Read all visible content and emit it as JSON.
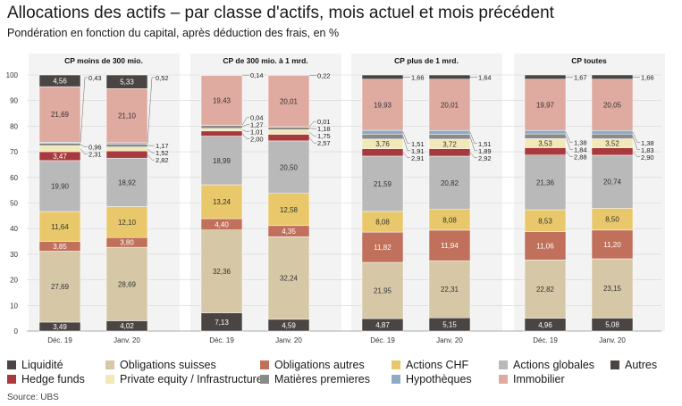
{
  "title": "Allocations des actifs – par classe d'actifs, mois actuel et mois précédent",
  "subtitle": "Pondération en fonction du capital, après déduction des frais, en %",
  "source": "Source: UBS",
  "colors": {
    "Liquidité": "#4a4542",
    "Obligations suisses": "#d6c7a6",
    "Obligations autres": "#c0705b",
    "Actions CHF": "#e8c86a",
    "Actions globales": "#b9b9b9",
    "Autres": "#4a4542",
    "Hedge funds": "#a83a3e",
    "Private equity/Infrastructure": "#f2e8b8",
    "Matières premieres": "#8a8a8a",
    "Hypothèques": "#8faac6",
    "Immobilier": "#dfaaa0"
  },
  "legend": [
    {
      "label": "Liquidité",
      "key": "Liquidité"
    },
    {
      "label": "Obligations suisses",
      "key": "Obligations suisses"
    },
    {
      "label": "Obligations autres",
      "key": "Obligations autres"
    },
    {
      "label": "Actions CHF",
      "key": "Actions CHF"
    },
    {
      "label": "Actions globales",
      "key": "Actions globales"
    },
    {
      "label": "Autres",
      "key": "Autres"
    },
    {
      "label": "Hedge funds",
      "key": "Hedge funds"
    },
    {
      "label": "Private equity / Infrastructure",
      "key": "Private equity/Infrastructure"
    },
    {
      "label": "Matières premieres",
      "key": "Matières premieres"
    },
    {
      "label": "Hypothèques",
      "key": "Hypothèques"
    },
    {
      "label": "Immobilier",
      "key": "Immobilier"
    }
  ],
  "chart_data": {
    "type": "bar",
    "stacked": true,
    "ylim": [
      0,
      100
    ],
    "yticks": [
      0,
      10,
      20,
      30,
      40,
      50,
      60,
      70,
      80,
      90,
      100
    ],
    "grid": true,
    "legend_position": "bottom",
    "series_order": [
      "Liquidité",
      "Obligations suisses",
      "Obligations autres",
      "Actions CHF",
      "Actions globales",
      "Hedge funds",
      "Private equity/Infrastructure",
      "Matières premieres",
      "Hypothèques",
      "Immobilier",
      "Autres"
    ],
    "groups": [
      {
        "label": "CP moins de 300 mio.",
        "bars": [
          {
            "label": "Déc. 19",
            "values": {
              "Liquidité": 3.49,
              "Obligations suisses": 27.69,
              "Obligations autres": 3.85,
              "Actions CHF": 11.64,
              "Actions globales": 19.9,
              "Hedge funds": 3.47,
              "Private equity/Infrastructure": 2.31,
              "Matières premieres": 0.96,
              "Hypothèques": 0.43,
              "Immobilier": 21.69,
              "Autres": 4.56
            }
          },
          {
            "label": "Janv. 20",
            "values": {
              "Liquidité": 4.02,
              "Obligations suisses": 28.69,
              "Obligations autres": 3.8,
              "Actions CHF": 12.1,
              "Actions globales": 18.92,
              "Hedge funds": 2.82,
              "Private equity/Infrastructure": 1.52,
              "Matières premieres": 1.17,
              "Hypothèques": 0.52,
              "Immobilier": 21.1,
              "Autres": 5.33
            }
          }
        ]
      },
      {
        "label": "CP de 300 mio. à 1 mrd.",
        "bars": [
          {
            "label": "Déc. 19",
            "values": {
              "Liquidité": 7.13,
              "Obligations suisses": 32.36,
              "Obligations autres": 4.4,
              "Actions CHF": 13.24,
              "Actions globales": 18.99,
              "Hedge funds": 2.0,
              "Private equity/Infrastructure": 1.01,
              "Matières premieres": 1.27,
              "Hypothèques": 0.04,
              "Immobilier": 19.43,
              "Autres": 0.14
            }
          },
          {
            "label": "Janv. 20",
            "values": {
              "Liquidité": 4.59,
              "Obligations suisses": 32.24,
              "Obligations autres": 4.35,
              "Actions CHF": 12.58,
              "Actions globales": 20.5,
              "Hedge funds": 2.57,
              "Private equity/Infrastructure": 1.75,
              "Matières premieres": 1.18,
              "Hypothèques": 0.01,
              "Immobilier": 20.01,
              "Autres": 0.22
            }
          }
        ]
      },
      {
        "label": "CP plus de 1 mrd.",
        "bars": [
          {
            "label": "Déc. 19",
            "values": {
              "Liquidité": 4.87,
              "Obligations suisses": 21.95,
              "Obligations autres": 11.82,
              "Actions CHF": 8.08,
              "Actions globales": 21.59,
              "Hedge funds": 2.91,
              "Private equity/Infrastructure": 3.76,
              "Matières premieres": 1.91,
              "Hypothèques": 1.51,
              "Immobilier": 19.93,
              "Autres": 1.66
            }
          },
          {
            "label": "Janv. 20",
            "values": {
              "Liquidité": 5.15,
              "Obligations suisses": 22.31,
              "Obligations autres": 11.94,
              "Actions CHF": 8.08,
              "Actions globales": 20.82,
              "Hedge funds": 2.92,
              "Private equity/Infrastructure": 3.72,
              "Matières premieres": 1.89,
              "Hypothèques": 1.51,
              "Immobilier": 20.01,
              "Autres": 1.64
            }
          }
        ]
      },
      {
        "label": "CP toutes",
        "bars": [
          {
            "label": "Déc. 19",
            "values": {
              "Liquidité": 4.96,
              "Obligations suisses": 22.82,
              "Obligations autres": 11.06,
              "Actions CHF": 8.53,
              "Actions globales": 21.36,
              "Hedge funds": 2.88,
              "Private equity/Infrastructure": 3.53,
              "Matières premieres": 1.84,
              "Hypothèques": 1.38,
              "Immobilier": 19.97,
              "Autres": 1.67
            }
          },
          {
            "label": "Janv. 20",
            "values": {
              "Liquidité": 5.08,
              "Obligations suisses": 23.15,
              "Obligations autres": 11.2,
              "Actions CHF": 8.5,
              "Actions globales": 20.74,
              "Hedge funds": 2.9,
              "Private equity/Infrastructure": 3.52,
              "Matières premieres": 1.83,
              "Hypothèques": 1.38,
              "Immobilier": 20.05,
              "Autres": 1.66
            }
          }
        ]
      }
    ],
    "callout_series": [
      "Hedge funds",
      "Private equity/Infrastructure",
      "Matières premieres",
      "Hypothèques",
      "Autres"
    ]
  }
}
